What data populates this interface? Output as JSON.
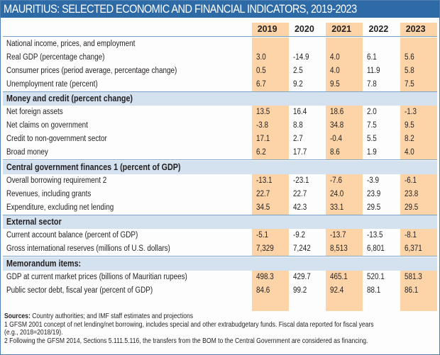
{
  "title": "MAURITIUS: SELECTED ECONOMIC AND FINANCIAL INDICATORS, 2019-2023",
  "years": [
    "2019",
    "2020",
    "2021",
    "2022",
    "2023"
  ],
  "sections": [
    {
      "header": "National income, prices, and employment",
      "plain_header": true,
      "rows": [
        {
          "label": "Real GDP (percentage change)",
          "values": [
            "3.0",
            "-14.9",
            "4.0",
            "6.1",
            "5.6"
          ]
        },
        {
          "label": "Consumer prices (period average, percentage change)",
          "values": [
            "0.5",
            "2.5",
            "4.0",
            "11.9",
            "5.8"
          ]
        },
        {
          "label": "Unemployment rate (percent)",
          "values": [
            "6.7",
            "9.2",
            "9.5",
            "7.8",
            "7.5"
          ]
        }
      ]
    },
    {
      "header": "Money and credit (percent change)",
      "rows": [
        {
          "label": "Net foreign assets",
          "values": [
            "13.5",
            "16.4",
            "18.6",
            "2.0",
            "-1.3"
          ]
        },
        {
          "label": "Net claims on government",
          "values": [
            "-3.8",
            "8.8",
            "34.8",
            "7.5",
            "9.5"
          ]
        },
        {
          "label": "Credit to non-government sector",
          "values": [
            "17.1",
            "2.7",
            "-0.4",
            "5.5",
            "8.2"
          ]
        },
        {
          "label": "Broad money",
          "values": [
            "6.2",
            "17.7",
            "8.6",
            "1.9",
            "4.0"
          ]
        }
      ]
    },
    {
      "header": "Central government finances 1 (percent of GDP)",
      "rows": [
        {
          "label": "Overall borrowing requirement 2",
          "values": [
            "-13.1",
            "-23.1",
            "-7.6",
            "-3.9",
            "-6.1"
          ]
        },
        {
          "label": "Revenues, including grants",
          "values": [
            "22.7",
            "22.7",
            "24.0",
            "23.9",
            "23.8"
          ]
        },
        {
          "label": "Expenditure, excluding net lending",
          "values": [
            "34.5",
            "42.3",
            "33.1",
            "29.5",
            "29.5"
          ]
        }
      ]
    },
    {
      "header": "External sector",
      "rows": [
        {
          "label": "Current account balance (percent of GDP)",
          "values": [
            "-5.1",
            "-9.2",
            "-13.7",
            "-13.5",
            "-8.1"
          ]
        },
        {
          "label": "Gross international reserves (millions of U.S. dollars)",
          "values": [
            "7,329",
            "7,242",
            "8,513",
            "6,801",
            "6,371"
          ]
        }
      ]
    },
    {
      "header": "Memorandum items:",
      "rows": [
        {
          "label": "GDP at current market prices (billions of Mauritian rupees)",
          "values": [
            "498.3",
            "429.7",
            "465.1",
            "520.1",
            "581.3"
          ]
        },
        {
          "label": "Public sector debt, fiscal year (percent of GDP)",
          "values": [
            "84.6",
            "99.2",
            "92.4",
            "88.1",
            "86.1"
          ]
        }
      ]
    }
  ],
  "notes": {
    "sources_label": "Sources:",
    "sources_text": " Country authorities; and IMF staff estimates and projections",
    "note1_line1": "1 GFSM 2001 concept of net lending/net borrowing, includes special and other extrabudgetary funds. Fiscal data reported for fiscal years",
    "note1_line2": "(e.g., 2018=2018/19).",
    "note2": "2 Following the GFSM 2014, Sections 5.111.5.116, the transfers from the BOM to the Central Government are considered as financing."
  },
  "colors": {
    "title_bar": "#2e6aa6",
    "highlight_column": "#fcd4a8",
    "section_band": "#d4e1ef",
    "separator": "#7da2c8"
  }
}
